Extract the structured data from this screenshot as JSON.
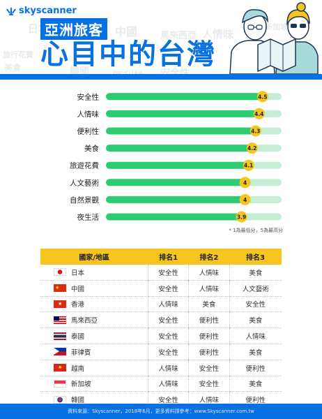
{
  "brand": {
    "name": "skyscanner"
  },
  "header": {
    "title_small": "亞洲旅客",
    "title_big": "心目中的台灣",
    "bg_words": [
      "日本",
      "中國",
      "馬來西亞",
      "人情味",
      "新加坡",
      "旅行花費",
      "美食",
      "韓國",
      "便利性",
      "安全性",
      "便利",
      "人情味",
      "台灣"
    ]
  },
  "chart_data": {
    "type": "bar",
    "categories": [
      "安全性",
      "人情味",
      "便利性",
      "美食",
      "旅遊花費",
      "人文藝術",
      "自然景觀",
      "夜生活"
    ],
    "values": [
      4.5,
      4.4,
      4.3,
      4.2,
      4.1,
      4.0,
      4.0,
      3.9
    ],
    "value_labels": [
      "4.5",
      "4.4",
      "4.3",
      "4.2",
      "4.1",
      "4",
      "4",
      "3.9"
    ],
    "xlim": [
      0,
      5
    ],
    "colors": {
      "bar": "#2ecc71",
      "track": "#c5eed5",
      "badge": "#f6c51f"
    }
  },
  "note": "* 1為最低分，5為最高分",
  "ranking": {
    "headers": [
      "國家/地區",
      "排名1",
      "排名2",
      "排名3"
    ],
    "rows": [
      {
        "country": "日本",
        "flag": "japan-flag",
        "r1": "安全性",
        "r2": "人情味",
        "r3": "美食"
      },
      {
        "country": "中國",
        "flag": "china-flag",
        "r1": "安全性",
        "r2": "人情味",
        "r3": "人文藝術"
      },
      {
        "country": "香港",
        "flag": "hongkong-flag",
        "r1": "人情味",
        "r2": "美食",
        "r3": "安全性"
      },
      {
        "country": "馬來西亞",
        "flag": "malaysia-flag",
        "r1": "安全性",
        "r2": "便利性",
        "r3": "美食"
      },
      {
        "country": "泰國",
        "flag": "thailand-flag",
        "r1": "安全性",
        "r2": "便利性",
        "r3": "人情味"
      },
      {
        "country": "菲律賓",
        "flag": "philippines-flag",
        "r1": "安全性",
        "r2": "便利性",
        "r3": "美食"
      },
      {
        "country": "越南",
        "flag": "vietnam-flag",
        "r1": "人情味",
        "r2": "安全性",
        "r3": "便利性"
      },
      {
        "country": "新加坡",
        "flag": "singapore-flag",
        "r1": "人情味",
        "r2": "安全性",
        "r3": "美食"
      },
      {
        "country": "韓國",
        "flag": "korea-flag",
        "r1": "安全性",
        "r2": "人情味",
        "r3": "便利性"
      }
    ]
  },
  "footer": "資料來源：Skyscanner，2018年6月，更多資料請參考：www.Skyscanner.com.tw"
}
